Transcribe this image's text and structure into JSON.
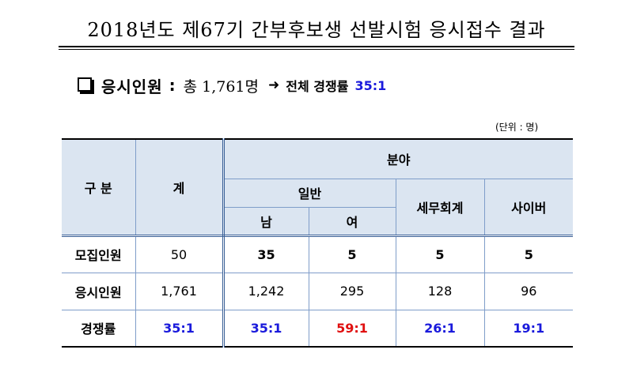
{
  "title": "2018년도 제67기 간부후보생 선발시험 응시접수 결과",
  "summary": {
    "label": "응시인원",
    "colon": ":",
    "total": "총 1,761명",
    "arrow": "➜",
    "ratio_label": "전체 경쟁률",
    "ratio_value": "35:1"
  },
  "unit": "(단위 : 명)",
  "table": {
    "header": {
      "category": "구 분",
      "total": "계",
      "field": "분야",
      "general": "일반",
      "tax": "세무회계",
      "cyber": "사이버",
      "male": "남",
      "female": "여"
    },
    "rows": [
      {
        "label": "모집인원",
        "total": "50",
        "male": "35",
        "female": "5",
        "tax": "5",
        "cyber": "5"
      },
      {
        "label": "응시인원",
        "total": "1,761",
        "male": "1,242",
        "female": "295",
        "tax": "128",
        "cyber": "96"
      },
      {
        "label": "경쟁률",
        "total": "35:1",
        "male": "35:1",
        "female": "59:1",
        "tax": "26:1",
        "cyber": "19:1"
      }
    ]
  },
  "colors": {
    "blue_text": "#1a1adc",
    "red_text": "#e01010",
    "header_bg": "#dbe5f1"
  }
}
